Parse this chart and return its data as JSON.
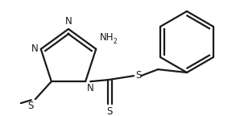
{
  "bg_color": "#ffffff",
  "line_color": "#1a1a1a",
  "line_width": 1.6,
  "font_size": 8.5,
  "figsize": [
    2.98,
    1.44
  ],
  "dpi": 100,
  "xlim": [
    0,
    298
  ],
  "ylim": [
    0,
    144
  ]
}
